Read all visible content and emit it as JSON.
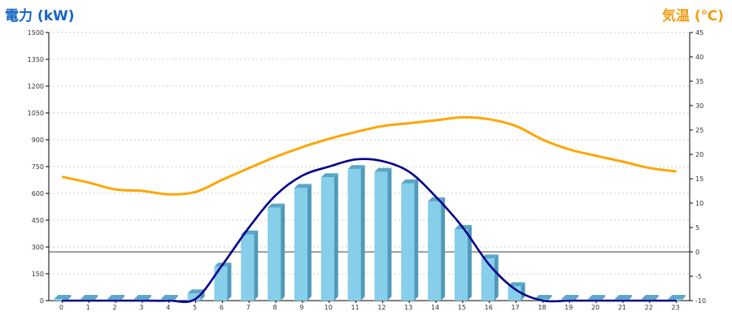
{
  "chart_data": {
    "type": "bar",
    "left_axis_title": "電力 (kW)",
    "right_axis_title": "気温 (℃)",
    "x": [
      "0",
      "1",
      "2",
      "3",
      "4",
      "5",
      "6",
      "7",
      "8",
      "9",
      "10",
      "11",
      "12",
      "13",
      "14",
      "15",
      "16",
      "17",
      "18",
      "19",
      "20",
      "21",
      "22",
      "23"
    ],
    "y_left_ticks": [
      "1500",
      "1350",
      "1200",
      "1050",
      "900",
      "750",
      "600",
      "450",
      "300",
      "150",
      "0"
    ],
    "y_right_ticks": [
      "45",
      "40",
      "35",
      "30",
      "25",
      "20",
      "15",
      "10",
      "5",
      "0",
      "-5",
      "-10"
    ],
    "y_left_range": [
      0,
      1500
    ],
    "y_right_range": [
      -10,
      45
    ],
    "grid": true,
    "series": [
      {
        "kind": "bar",
        "axis": "left",
        "values": [
          0,
          0,
          0,
          0,
          0,
          40,
          190,
          370,
          520,
          630,
          690,
          735,
          720,
          655,
          555,
          400,
          235,
          80,
          0,
          0,
          0,
          0,
          0,
          0
        ]
      },
      {
        "kind": "line",
        "axis": "left",
        "values": [
          0,
          0,
          0,
          0,
          0,
          10,
          200,
          410,
          590,
          700,
          750,
          790,
          780,
          720,
          580,
          410,
          200,
          60,
          0,
          0,
          0,
          0,
          0,
          0
        ]
      },
      {
        "kind": "line",
        "axis": "right",
        "values": [
          15.4,
          14.2,
          12.8,
          12.5,
          11.8,
          12.3,
          14.8,
          17.2,
          19.5,
          21.5,
          23.2,
          24.6,
          25.8,
          26.4,
          27.0,
          27.6,
          27.2,
          25.8,
          23.0,
          21.0,
          19.7,
          18.5,
          17.2,
          16.5
        ]
      }
    ],
    "colors": {
      "left_title": "#1565c0",
      "right_title": "#f39c12",
      "bar_front": "#87ceeb",
      "bar_side": "#4f9ab8",
      "bar_top": "#5aa7c7",
      "line_power": "#00008b",
      "line_temp": "#ffa500",
      "grid": "#cccccc"
    }
  }
}
